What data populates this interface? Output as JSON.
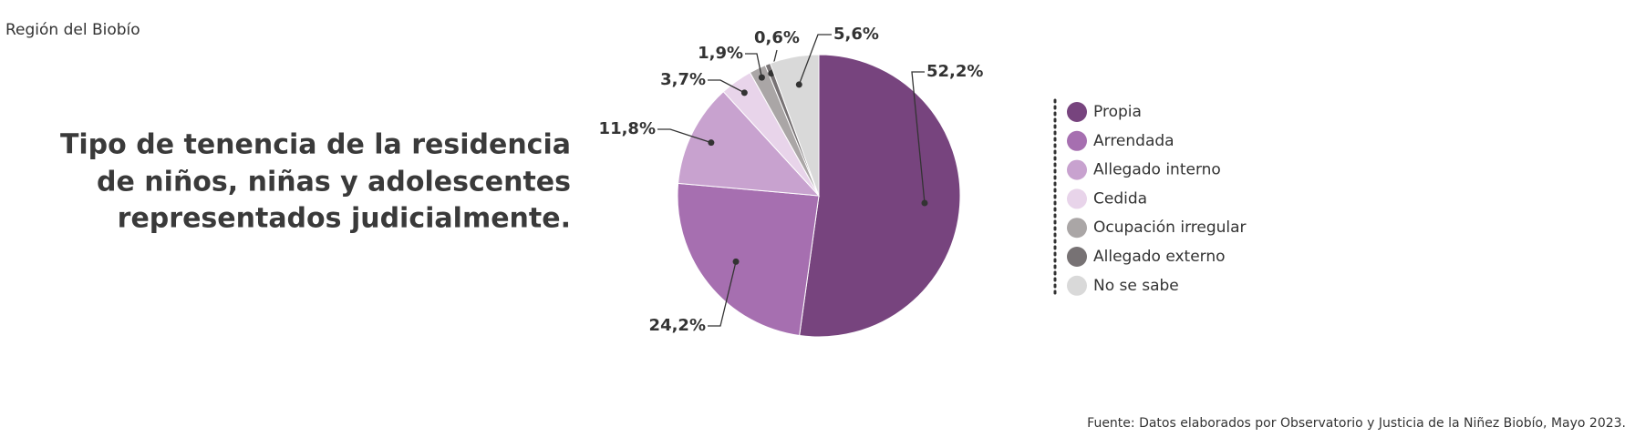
{
  "chart_data": {
    "type": "pie",
    "subtitle": "Región del Biobío",
    "title": [
      "Tipo de tenencia de la residencia",
      "de niños, niñas y adolescentes",
      "representados judicialmente."
    ],
    "categories": [
      "Propia",
      "Arrendada",
      "Allegado interno",
      "Cedida",
      "Ocupación irregular",
      "Allegado externo",
      "No se sabe"
    ],
    "values": [
      52.2,
      24.2,
      11.8,
      3.7,
      1.9,
      0.6,
      5.6
    ],
    "value_labels": [
      "52,2%",
      "24,2%",
      "11,8%",
      "3,7%",
      "1,9%",
      "0,6%",
      "5,6%"
    ],
    "colors": [
      "#77447e",
      "#a66fb0",
      "#c8a2cf",
      "#e8d4ea",
      "#aaa6a6",
      "#777274",
      "#d9d9d9"
    ],
    "source": "Fuente: Datos elaborados por Observatorio y Justicia de la Niñez Biobío, Mayo 2023."
  }
}
